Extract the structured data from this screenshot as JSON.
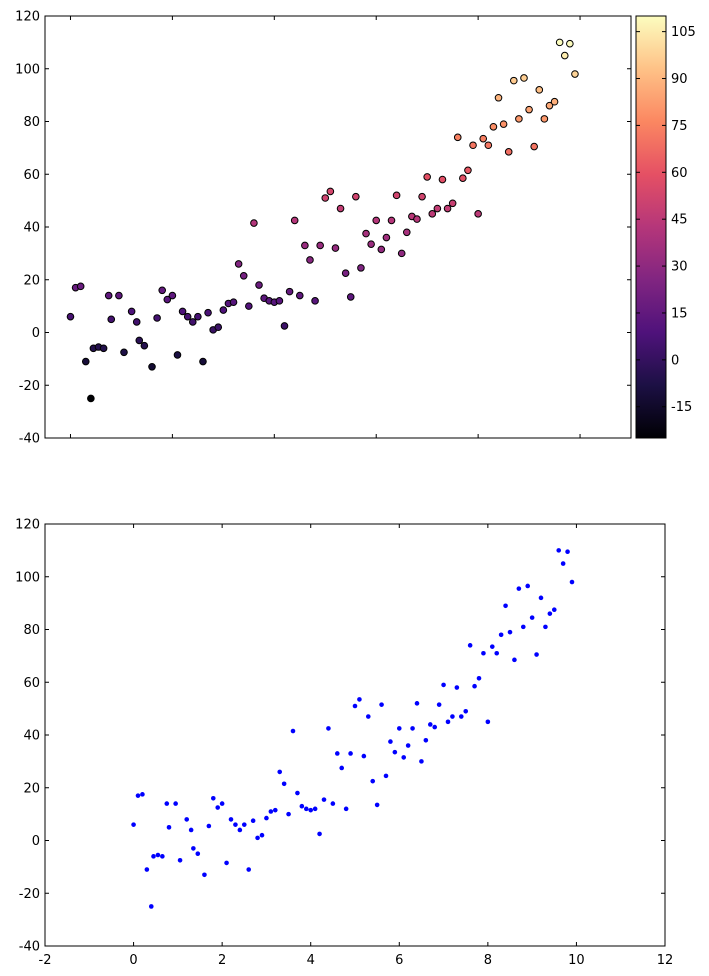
{
  "chart_data": [
    {
      "type": "scatter",
      "title": "",
      "xlabel": "",
      "ylabel": "",
      "xlim": [
        -0.5,
        11.0
      ],
      "ylim": [
        -40,
        120
      ],
      "yticks": [
        -40,
        -20,
        0,
        20,
        40,
        60,
        80,
        100,
        120
      ],
      "xtick_labels_shown": false,
      "marker_edge_color": "#000000",
      "colormap": "magma",
      "colorbar": {
        "range": [
          -25,
          110
        ],
        "ticks": [
          -15,
          0,
          15,
          30,
          45,
          60,
          75,
          90,
          105
        ],
        "position": "right"
      },
      "note": "Point color encodes the y value via the colorbar."
    },
    {
      "type": "scatter",
      "title": "",
      "xlabel": "",
      "ylabel": "",
      "xlim": [
        -2,
        12
      ],
      "ylim": [
        -40,
        120
      ],
      "xticks": [
        -2,
        0,
        2,
        4,
        6,
        8,
        10,
        12
      ],
      "yticks": [
        -40,
        -20,
        0,
        20,
        40,
        60,
        80,
        100,
        120
      ],
      "marker_color": "#0000ff",
      "points": [
        [
          0.0,
          6
        ],
        [
          0.1,
          17
        ],
        [
          0.2,
          17.5
        ],
        [
          0.3,
          -11
        ],
        [
          0.4,
          -25
        ],
        [
          0.45,
          -6
        ],
        [
          0.55,
          -5.5
        ],
        [
          0.65,
          -6
        ],
        [
          0.75,
          14
        ],
        [
          0.8,
          5
        ],
        [
          0.95,
          14
        ],
        [
          1.05,
          -7.5
        ],
        [
          1.2,
          8
        ],
        [
          1.3,
          4
        ],
        [
          1.35,
          -3
        ],
        [
          1.45,
          -5
        ],
        [
          1.6,
          -13
        ],
        [
          1.7,
          5.5
        ],
        [
          1.8,
          16
        ],
        [
          1.9,
          12.5
        ],
        [
          2.0,
          14
        ],
        [
          2.1,
          -8.5
        ],
        [
          2.2,
          8
        ],
        [
          2.3,
          6
        ],
        [
          2.4,
          4
        ],
        [
          2.5,
          6
        ],
        [
          2.6,
          -11
        ],
        [
          2.7,
          7.5
        ],
        [
          2.8,
          1
        ],
        [
          2.9,
          2
        ],
        [
          3.0,
          8.5
        ],
        [
          3.1,
          11
        ],
        [
          3.2,
          11.5
        ],
        [
          3.3,
          26
        ],
        [
          3.4,
          21.5
        ],
        [
          3.5,
          10
        ],
        [
          3.6,
          41.5
        ],
        [
          3.7,
          18
        ],
        [
          3.8,
          13
        ],
        [
          3.9,
          12
        ],
        [
          4.0,
          11.5
        ],
        [
          4.1,
          12
        ],
        [
          4.2,
          2.5
        ],
        [
          4.3,
          15.5
        ],
        [
          4.4,
          42.5
        ],
        [
          4.5,
          14
        ],
        [
          4.6,
          33
        ],
        [
          4.7,
          27.5
        ],
        [
          4.8,
          12
        ],
        [
          4.9,
          33
        ],
        [
          5.0,
          51
        ],
        [
          5.1,
          53.5
        ],
        [
          5.2,
          32
        ],
        [
          5.3,
          47
        ],
        [
          5.4,
          22.5
        ],
        [
          5.5,
          13.5
        ],
        [
          5.6,
          51.5
        ],
        [
          5.7,
          24.5
        ],
        [
          5.8,
          37.5
        ],
        [
          5.9,
          33.5
        ],
        [
          6.0,
          42.5
        ],
        [
          6.1,
          31.5
        ],
        [
          6.2,
          36
        ],
        [
          6.3,
          42.5
        ],
        [
          6.4,
          52
        ],
        [
          6.5,
          30
        ],
        [
          6.6,
          38
        ],
        [
          6.7,
          44
        ],
        [
          6.8,
          43
        ],
        [
          6.9,
          51.5
        ],
        [
          7.0,
          59
        ],
        [
          7.1,
          45
        ],
        [
          7.2,
          47
        ],
        [
          7.3,
          58
        ],
        [
          7.4,
          47
        ],
        [
          7.5,
          49
        ],
        [
          7.6,
          74
        ],
        [
          7.7,
          58.5
        ],
        [
          7.8,
          61.5
        ],
        [
          7.9,
          71
        ],
        [
          8.0,
          45
        ],
        [
          8.1,
          73.5
        ],
        [
          8.2,
          71
        ],
        [
          8.3,
          78
        ],
        [
          8.4,
          89
        ],
        [
          8.5,
          79
        ],
        [
          8.6,
          68.5
        ],
        [
          8.7,
          95.5
        ],
        [
          8.8,
          81
        ],
        [
          8.9,
          96.5
        ],
        [
          9.0,
          84.5
        ],
        [
          9.1,
          70.5
        ],
        [
          9.2,
          92
        ],
        [
          9.3,
          81
        ],
        [
          9.4,
          86
        ],
        [
          9.5,
          87.5
        ],
        [
          9.6,
          110
        ],
        [
          9.7,
          105
        ],
        [
          9.8,
          109.5
        ],
        [
          9.9,
          98
        ]
      ]
    }
  ]
}
